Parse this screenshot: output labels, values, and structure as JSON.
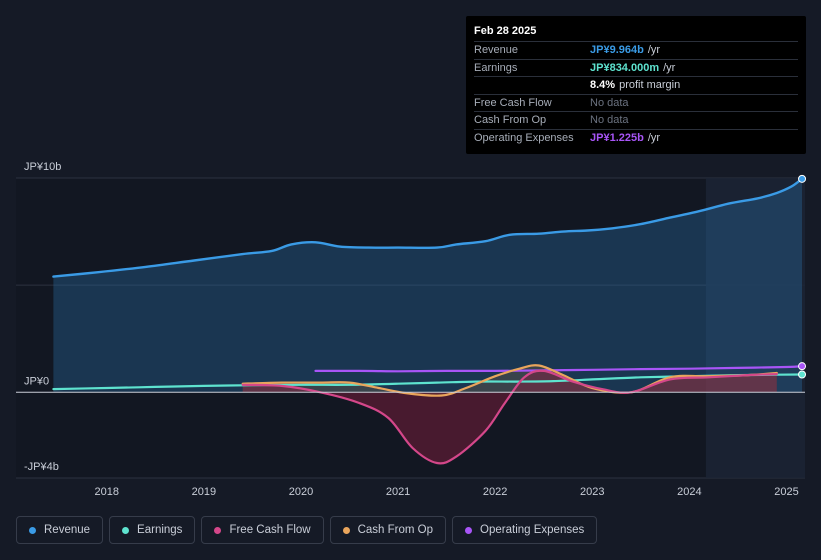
{
  "tooltip": {
    "date": "Feb 28 2025",
    "rows": [
      {
        "label": "Revenue",
        "value": "JP¥9.964b",
        "unit": "/yr",
        "color": "#3a9be6"
      },
      {
        "label": "Earnings",
        "value": "JP¥834.000m",
        "unit": "/yr",
        "color": "#5ee3cf"
      },
      {
        "label": "",
        "value": "8.4%",
        "unit": "profit margin",
        "color": "#ffffff"
      },
      {
        "label": "Free Cash Flow",
        "value": "No data",
        "unit": "",
        "color": "#6b7280"
      },
      {
        "label": "Cash From Op",
        "value": "No data",
        "unit": "",
        "color": "#6b7280"
      },
      {
        "label": "Operating Expenses",
        "value": "JP¥1.225b",
        "unit": "/yr",
        "color": "#a855f7"
      }
    ]
  },
  "legend": [
    {
      "label": "Revenue",
      "color": "#3a9be6"
    },
    {
      "label": "Earnings",
      "color": "#5ee3cf"
    },
    {
      "label": "Free Cash Flow",
      "color": "#d4478a"
    },
    {
      "label": "Cash From Op",
      "color": "#e9a55c"
    },
    {
      "label": "Operating Expenses",
      "color": "#a855f7"
    }
  ],
  "chart_data": {
    "type": "line",
    "ylim": [
      -4,
      10
    ],
    "xlim": [
      2017.4,
      2025.17
    ],
    "forecast_start": 2024.17,
    "y_labels": [
      {
        "value": 10,
        "text": "JP¥10b"
      },
      {
        "value": 0,
        "text": "JP¥0"
      },
      {
        "value": -4,
        "text": "-JP¥4b"
      }
    ],
    "x_ticks": [
      {
        "value": 2018,
        "text": "2018"
      },
      {
        "value": 2019,
        "text": "2019"
      },
      {
        "value": 2020,
        "text": "2020"
      },
      {
        "value": 2021,
        "text": "2021"
      },
      {
        "value": 2022,
        "text": "2022"
      },
      {
        "value": 2023,
        "text": "2023"
      },
      {
        "value": 2024,
        "text": "2024"
      },
      {
        "value": 2025,
        "text": "2025"
      }
    ],
    "series": [
      {
        "name": "Revenue",
        "color": "#3a9be6",
        "fill": true,
        "end_marker": true,
        "x": [
          2017.45,
          2017.9,
          2018.4,
          2018.9,
          2019.4,
          2019.7,
          2019.9,
          2020.15,
          2020.4,
          2020.7,
          2021.0,
          2021.4,
          2021.6,
          2021.9,
          2022.15,
          2022.45,
          2022.7,
          2022.95,
          2023.2,
          2023.5,
          2023.8,
          2024.1,
          2024.4,
          2024.7,
          2024.9,
          2025.05,
          2025.16
        ],
        "y": [
          5.4,
          5.6,
          5.85,
          6.15,
          6.45,
          6.6,
          6.9,
          7.0,
          6.8,
          6.75,
          6.75,
          6.75,
          6.9,
          7.05,
          7.35,
          7.4,
          7.5,
          7.55,
          7.65,
          7.85,
          8.15,
          8.45,
          8.8,
          9.05,
          9.3,
          9.6,
          9.96
        ]
      },
      {
        "name": "Earnings",
        "color": "#5ee3cf",
        "fill": false,
        "end_marker": true,
        "x": [
          2017.45,
          2018.0,
          2018.5,
          2019.0,
          2019.5,
          2020.0,
          2020.5,
          2021.0,
          2021.4,
          2021.8,
          2022.2,
          2022.6,
          2023.0,
          2023.5,
          2024.0,
          2024.5,
          2024.9,
          2025.16
        ],
        "y": [
          0.15,
          0.2,
          0.25,
          0.3,
          0.33,
          0.35,
          0.35,
          0.4,
          0.45,
          0.5,
          0.5,
          0.52,
          0.6,
          0.7,
          0.75,
          0.8,
          0.82,
          0.83
        ]
      },
      {
        "name": "Operating Expenses",
        "color": "#a855f7",
        "fill": false,
        "end_marker": true,
        "x": [
          2020.15,
          2020.6,
          2021.0,
          2021.5,
          2022.0,
          2022.5,
          2023.0,
          2023.5,
          2024.0,
          2024.5,
          2025.0,
          2025.16
        ],
        "y": [
          1.0,
          1.0,
          0.98,
          1.0,
          1.0,
          1.02,
          1.05,
          1.08,
          1.1,
          1.14,
          1.18,
          1.22
        ]
      },
      {
        "name": "Cash From Op",
        "color": "#e9a55c",
        "fill": true,
        "end_marker": false,
        "x": [
          2019.4,
          2019.8,
          2020.2,
          2020.5,
          2020.8,
          2021.1,
          2021.45,
          2021.7,
          2022.0,
          2022.25,
          2022.45,
          2022.7,
          2023.0,
          2023.4,
          2023.8,
          2024.2,
          2024.6,
          2024.9
        ],
        "y": [
          0.4,
          0.45,
          0.45,
          0.45,
          0.2,
          -0.05,
          -0.15,
          0.2,
          0.75,
          1.1,
          1.25,
          0.8,
          0.2,
          0.0,
          0.7,
          0.75,
          0.8,
          0.9
        ]
      },
      {
        "name": "Free Cash Flow",
        "color": "#d4478a",
        "fill": true,
        "end_marker": false,
        "x": [
          2019.4,
          2019.8,
          2020.2,
          2020.6,
          2020.9,
          2021.15,
          2021.4,
          2021.6,
          2021.9,
          2022.1,
          2022.3,
          2022.5,
          2022.8,
          2023.1,
          2023.4,
          2023.8,
          2024.2,
          2024.6,
          2024.9
        ],
        "y": [
          0.35,
          0.3,
          0.0,
          -0.5,
          -1.2,
          -2.6,
          -3.3,
          -3.0,
          -1.8,
          -0.5,
          0.7,
          1.0,
          0.5,
          0.15,
          0.0,
          0.6,
          0.7,
          0.8,
          0.85
        ]
      }
    ]
  }
}
